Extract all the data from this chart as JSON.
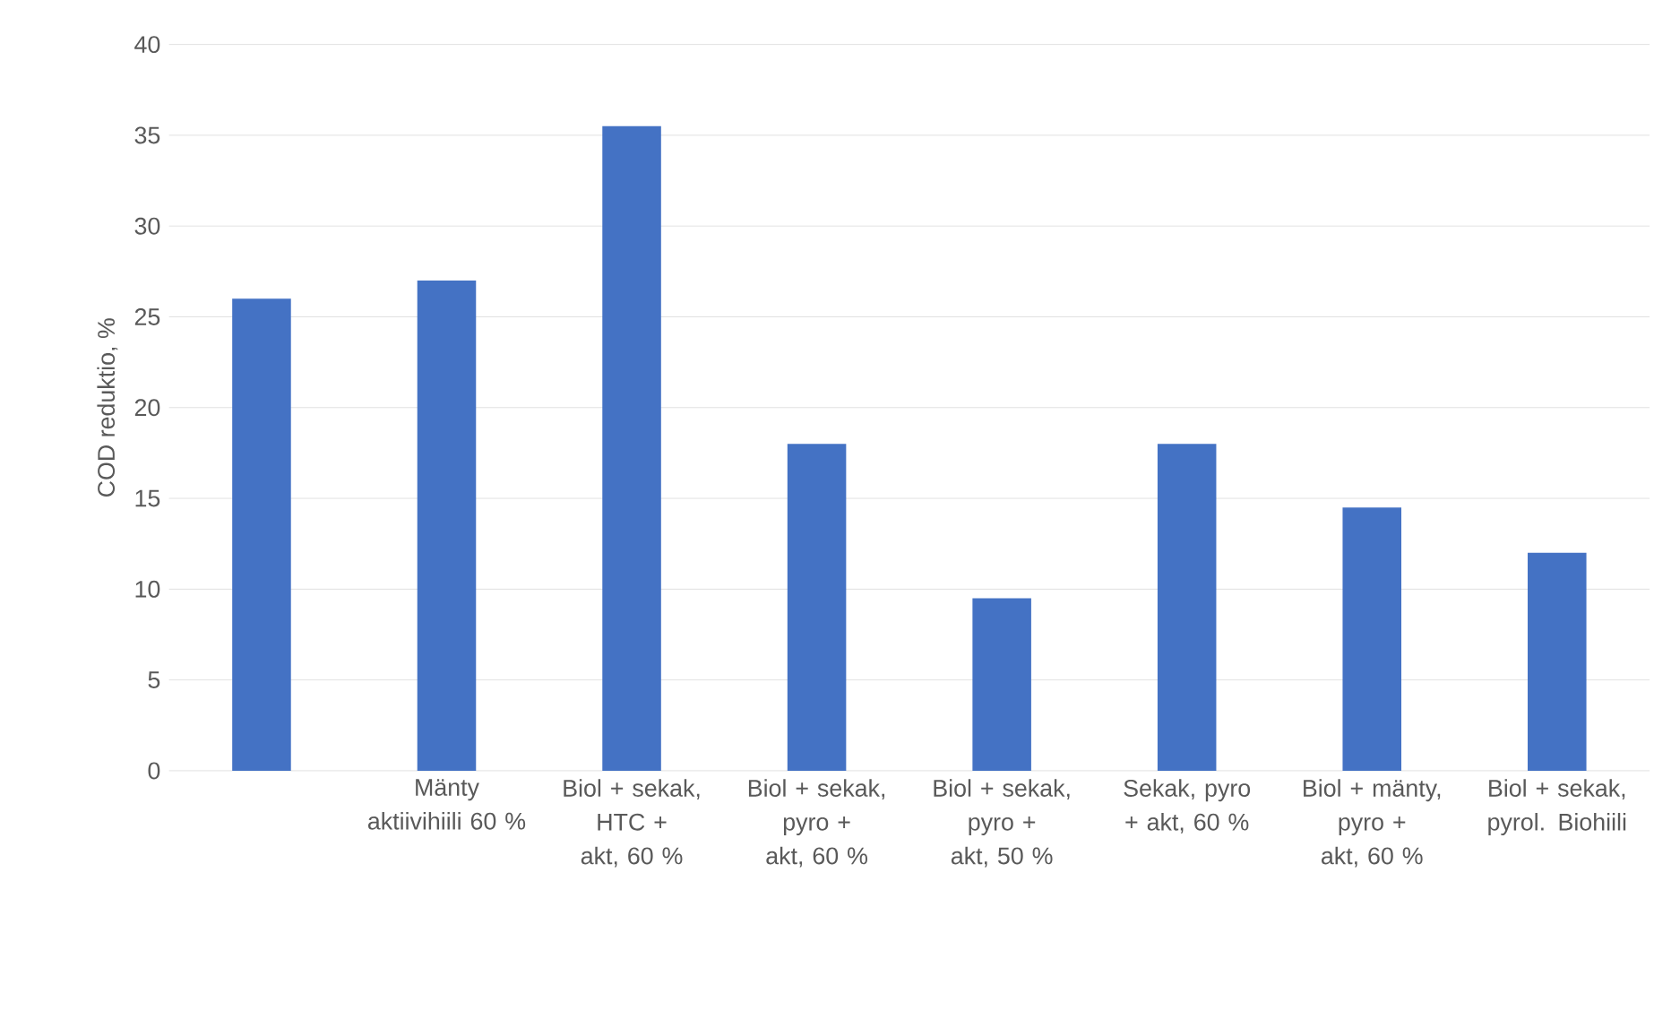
{
  "chart_data": {
    "type": "bar",
    "ylabel": "COD reduktio, %",
    "categories": [
      null,
      "Mänty aktiivihiili 60 %",
      "Biol + sekak, HTC + akt, 60 %",
      "Biol + sekak, pyro + akt, 60 %",
      "Biol + sekak, pyro + akt, 50 %",
      "Sekak, pyro + akt, 60 %",
      "Biol + mänty, pyro + akt, 60 %",
      "Biol + sekak, pyrol. Biohiili"
    ],
    "values": [
      26,
      27,
      35.5,
      18,
      9.5,
      18,
      14.5,
      12
    ],
    "color": "#4472c4",
    "ylim": [
      0,
      40
    ],
    "yticks": [
      0,
      5,
      10,
      15,
      20,
      25,
      30,
      35,
      40
    ],
    "grid": "y"
  }
}
